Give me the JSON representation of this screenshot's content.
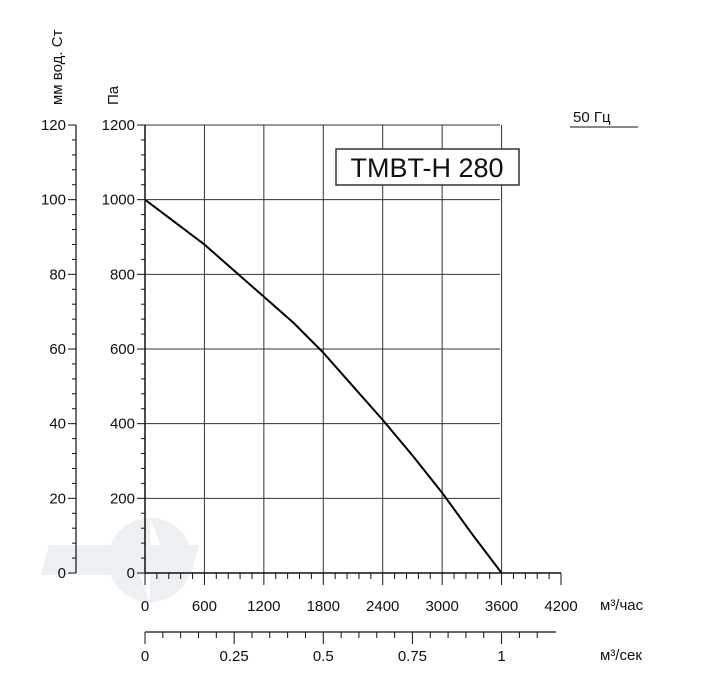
{
  "chart_data": {
    "type": "line",
    "model_label": "TMBT-H 280",
    "frequency_label": "50 Гц",
    "y_left_label": "мм вод. Ст",
    "y_right_label": "Па",
    "x_label_hour": "м³/час",
    "x_label_sec": "м³/сек",
    "y_pa_range": [
      0,
      1200
    ],
    "y_pa_ticks": [
      "0",
      "200",
      "400",
      "600",
      "800",
      "1000",
      "1200"
    ],
    "y_mm_ticks": [
      "0",
      "20",
      "40",
      "60",
      "80",
      "100",
      "120"
    ],
    "x_hour_range": [
      0,
      4200
    ],
    "x_hour_ticks": [
      "0",
      "600",
      "1200",
      "1800",
      "2400",
      "3000",
      "3600",
      "4200"
    ],
    "x_sec_ticks": [
      "0",
      "0.25",
      "0.5",
      "0.75",
      "1"
    ],
    "grid": true,
    "series": [
      {
        "x": [
          0,
          300,
          600,
          900,
          1200,
          1500,
          1800,
          2100,
          2400,
          2700,
          3000,
          3300,
          3600
        ],
        "y": [
          1000,
          940,
          880,
          810,
          740,
          670,
          590,
          500,
          410,
          315,
          215,
          105,
          0
        ]
      }
    ],
    "colors": {
      "line": "#000000",
      "grid": "#333333"
    }
  }
}
